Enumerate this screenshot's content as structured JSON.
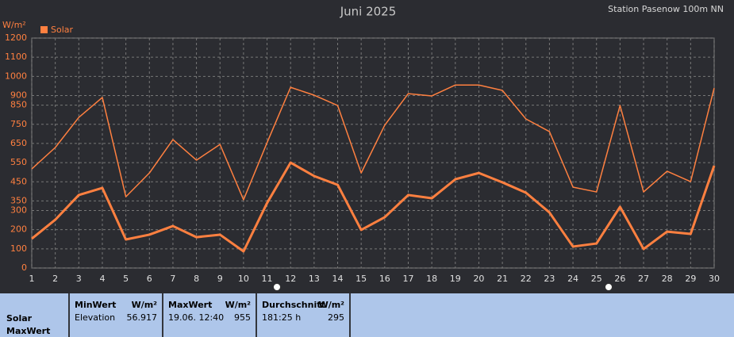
{
  "chart_data": {
    "type": "line",
    "title": "Juni 2025",
    "subtitle": "Station Pasenow 100m NN",
    "y_label": "W/m²",
    "x": [
      1,
      2,
      3,
      4,
      5,
      6,
      7,
      8,
      9,
      10,
      11,
      12,
      13,
      14,
      15,
      16,
      17,
      18,
      19,
      20,
      21,
      22,
      23,
      24,
      25,
      26,
      27,
      28,
      29,
      30
    ],
    "series": [
      {
        "name": "Solar",
        "color": "#ff8040",
        "line_width": 1.5,
        "values": [
          517,
          629,
          786,
          890,
          372,
          496,
          670,
          563,
          645,
          356,
          654,
          943,
          902,
          848,
          496,
          745,
          910,
          898,
          955,
          955,
          927,
          778,
          712,
          422,
          397,
          848,
          397,
          505,
          451,
          939
        ]
      },
      {
        "color": "#ff8040",
        "line_width": 3,
        "values": [
          153,
          252,
          381,
          418,
          149,
          174,
          219,
          161,
          174,
          87,
          339,
          550,
          480,
          434,
          199,
          265,
          381,
          364,
          463,
          496,
          447,
          393,
          290,
          112,
          128,
          319,
          99,
          190,
          178,
          534
        ]
      }
    ],
    "xlim": [
      1,
      30
    ],
    "xticks": [
      1,
      2,
      3,
      4,
      5,
      6,
      7,
      8,
      9,
      10,
      11,
      12,
      13,
      14,
      15,
      16,
      17,
      18,
      19,
      20,
      21,
      22,
      23,
      24,
      25,
      26,
      27,
      28,
      29,
      30
    ],
    "ylim": [
      0,
      1200
    ],
    "yticks": [
      0,
      100,
      200,
      300,
      350,
      450,
      550,
      650,
      750,
      850,
      900,
      1000,
      1100,
      1200
    ],
    "grid": true
  },
  "table": {
    "header": [
      "Solar",
      "MaxWert"
    ],
    "columns": [
      {
        "title": "MinWert",
        "unit": "W/m²",
        "label": "Elevation",
        "value": "56.917"
      },
      {
        "title": "MaxWert",
        "unit": "W/m²",
        "label": "19.06.  12:40",
        "value": "955"
      },
      {
        "title": "Durchschnitt",
        "unit": "W/m²",
        "label": "181:25 h",
        "value": "295"
      }
    ]
  }
}
